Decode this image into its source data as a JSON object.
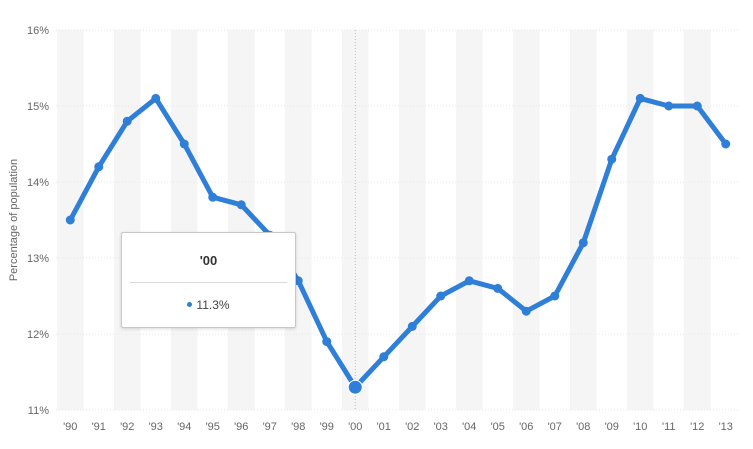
{
  "chart_data": {
    "type": "line",
    "title": "",
    "xlabel": "",
    "ylabel": "Percentage of population",
    "categories": [
      "'90",
      "'91",
      "'92",
      "'93",
      "'94",
      "'95",
      "'96",
      "'97",
      "'98",
      "'99",
      "'00",
      "'01",
      "'02",
      "'03",
      "'04",
      "'05",
      "'06",
      "'07",
      "'08",
      "'09",
      "'10",
      "'11",
      "'12",
      "'13"
    ],
    "series": [
      {
        "name": "",
        "values": [
          13.5,
          14.2,
          14.8,
          15.1,
          14.5,
          13.8,
          13.7,
          13.3,
          12.7,
          11.9,
          11.3,
          11.7,
          12.1,
          12.5,
          12.7,
          12.6,
          12.3,
          12.5,
          13.2,
          14.3,
          15.1,
          15.0,
          15.0,
          14.5
        ],
        "color": "#2f7ed8"
      }
    ],
    "ylim": [
      11,
      16
    ],
    "yticks": [
      "11%",
      "12%",
      "13%",
      "14%",
      "15%",
      "16%"
    ],
    "grid": true,
    "highlight_index": 10
  },
  "tooltip": {
    "title": "'00",
    "value": "11.3%"
  },
  "colors": {
    "line": "#2f7ed8",
    "band": "#f5f5f5",
    "grid": "#e6e6e6"
  }
}
